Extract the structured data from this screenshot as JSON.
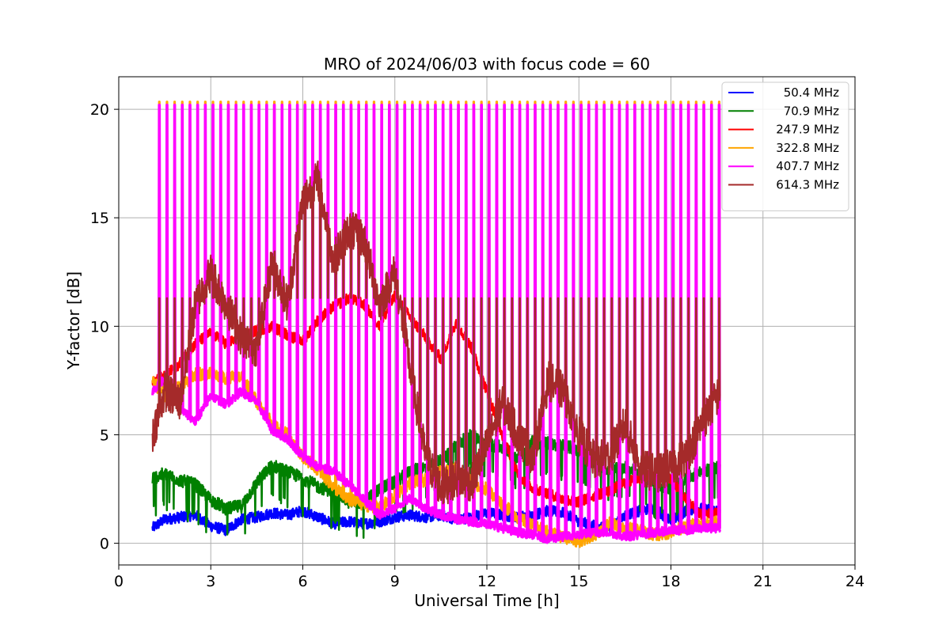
{
  "chart_data": {
    "type": "line",
    "title": "MRO of 2024/06/03 with focus code = 60",
    "xlabel": "Universal Time [h]",
    "ylabel": "Y-factor [dB]",
    "xlim": [
      0,
      24
    ],
    "ylim": [
      -1,
      21.5
    ],
    "xticks": [
      0,
      3,
      6,
      9,
      12,
      15,
      18,
      21,
      24
    ],
    "yticks": [
      0,
      5,
      10,
      15,
      20
    ],
    "grid": true,
    "legend_position": "top-right",
    "spikes": {
      "start_h": 1.3,
      "end_h": 19.6,
      "period_h": 0.25,
      "peak_db": {
        "322.8 MHz": 20.35,
        "407.7 MHz": 20.2,
        "614.3 MHz": 11.3
      }
    },
    "series": [
      {
        "name": "50.4 MHz",
        "color": "#0000ff",
        "x": [
          1.1,
          1.5,
          2.0,
          2.5,
          3.0,
          3.5,
          4.0,
          4.5,
          5.0,
          5.5,
          6.0,
          6.5,
          7.0,
          7.5,
          8.0,
          8.5,
          9.0,
          9.5,
          10.0,
          10.5,
          11.0,
          11.5,
          12.0,
          12.5,
          13.0,
          13.5,
          14.0,
          14.5,
          15.0,
          15.5,
          16.0,
          16.5,
          17.0,
          17.5,
          18.0,
          18.5,
          19.0,
          19.6
        ],
        "y": [
          0.7,
          1.1,
          1.2,
          1.3,
          0.8,
          0.6,
          1.1,
          1.2,
          1.4,
          1.3,
          1.5,
          1.2,
          0.9,
          1.0,
          0.9,
          1.0,
          1.2,
          1.3,
          1.2,
          1.3,
          1.1,
          1.2,
          1.4,
          1.3,
          1.2,
          1.3,
          1.5,
          1.4,
          1.0,
          0.8,
          0.7,
          1.3,
          1.5,
          1.6,
          1.0,
          1.5,
          1.6,
          1.5
        ]
      },
      {
        "name": "70.9 MHz",
        "color": "#008000",
        "x": [
          1.1,
          1.5,
          2.0,
          2.5,
          3.0,
          3.5,
          4.0,
          4.5,
          5.0,
          5.5,
          6.0,
          6.5,
          7.0,
          7.5,
          8.0,
          8.5,
          9.0,
          9.5,
          10.0,
          10.5,
          11.0,
          11.5,
          12.0,
          12.5,
          13.0,
          13.5,
          14.0,
          14.5,
          15.0,
          15.5,
          16.0,
          16.5,
          17.0,
          17.5,
          18.0,
          18.5,
          19.0,
          19.6
        ],
        "y": [
          3.0,
          3.2,
          2.9,
          2.7,
          2.0,
          1.6,
          1.7,
          2.8,
          3.6,
          3.3,
          3.0,
          2.6,
          2.4,
          1.9,
          1.9,
          2.5,
          2.8,
          3.3,
          3.5,
          3.8,
          4.5,
          5.0,
          4.6,
          4.4,
          4.0,
          4.7,
          4.6,
          4.5,
          4.3,
          3.7,
          3.4,
          3.5,
          3.2,
          2.8,
          2.5,
          3.0,
          3.3,
          3.5
        ]
      },
      {
        "name": "247.9 MHz",
        "color": "#ff0000",
        "x": [
          1.1,
          1.5,
          2.0,
          2.5,
          3.0,
          3.5,
          4.0,
          4.5,
          5.0,
          5.5,
          6.0,
          6.5,
          7.0,
          7.5,
          8.0,
          8.5,
          9.0,
          9.5,
          10.0,
          10.5,
          11.0,
          11.5,
          12.0,
          12.5,
          13.0,
          13.5,
          14.0,
          14.5,
          15.0,
          15.5,
          16.0,
          16.5,
          17.0,
          17.5,
          18.0,
          18.5,
          19.0,
          19.6
        ],
        "y": [
          7.5,
          7.7,
          8.3,
          9.2,
          9.7,
          9.2,
          9.5,
          9.8,
          10.0,
          9.6,
          9.3,
          10.3,
          10.9,
          11.3,
          11.0,
          10.0,
          11.4,
          10.4,
          9.5,
          8.5,
          10.2,
          9.0,
          7.0,
          5.0,
          3.2,
          2.5,
          2.3,
          2.0,
          1.9,
          2.2,
          2.4,
          2.8,
          3.0,
          3.2,
          3.0,
          2.0,
          1.3,
          1.5
        ]
      },
      {
        "name": "322.8 MHz",
        "color": "#ffa500",
        "x": [
          1.1,
          1.5,
          2.0,
          2.5,
          3.0,
          3.5,
          4.0,
          4.5,
          5.0,
          5.5,
          6.0,
          6.5,
          7.0,
          7.5,
          8.0,
          8.5,
          9.0,
          9.5,
          10.0,
          10.5,
          11.0,
          11.5,
          12.0,
          12.5,
          13.0,
          13.5,
          14.0,
          14.5,
          15.0,
          15.5,
          16.0,
          16.5,
          17.0,
          17.5,
          18.0,
          18.5,
          19.0,
          19.6
        ],
        "y": [
          7.5,
          6.8,
          7.2,
          7.8,
          7.8,
          7.6,
          7.7,
          6.5,
          5.5,
          5.0,
          4.0,
          3.4,
          2.6,
          2.0,
          1.8,
          1.6,
          2.2,
          2.8,
          2.9,
          3.3,
          3.4,
          2.8,
          2.5,
          1.8,
          1.2,
          0.8,
          0.5,
          0.3,
          0.1,
          0.4,
          0.9,
          0.7,
          0.6,
          0.4,
          0.5,
          0.8,
          0.9,
          1.0
        ]
      },
      {
        "name": "407.7 MHz",
        "color": "#ff00ff",
        "x": [
          1.1,
          1.5,
          2.0,
          2.5,
          3.0,
          3.5,
          4.0,
          4.5,
          5.0,
          5.5,
          6.0,
          6.5,
          7.0,
          7.5,
          8.0,
          8.5,
          9.0,
          9.5,
          10.0,
          10.5,
          11.0,
          11.5,
          12.0,
          12.5,
          13.0,
          13.5,
          14.0,
          14.5,
          15.0,
          15.5,
          16.0,
          16.5,
          17.0,
          17.5,
          18.0,
          18.5,
          19.0,
          19.6
        ],
        "y": [
          7.0,
          7.6,
          6.2,
          5.6,
          6.8,
          6.4,
          7.0,
          6.5,
          5.2,
          4.8,
          4.0,
          3.5,
          3.3,
          2.7,
          2.0,
          1.3,
          1.6,
          2.1,
          1.6,
          1.3,
          1.1,
          1.0,
          0.9,
          0.7,
          0.5,
          0.4,
          0.2,
          0.3,
          0.4,
          0.5,
          0.5,
          0.3,
          0.4,
          0.5,
          0.6,
          0.6,
          0.7,
          0.7
        ]
      },
      {
        "name": "614.3 MHz",
        "color": "#a52a2a",
        "x": [
          1.1,
          1.5,
          2.0,
          2.5,
          3.0,
          3.5,
          4.0,
          4.5,
          5.0,
          5.5,
          6.0,
          6.5,
          7.0,
          7.5,
          8.0,
          8.5,
          9.0,
          9.5,
          10.0,
          10.5,
          11.0,
          11.5,
          12.0,
          12.5,
          13.0,
          13.5,
          14.0,
          14.5,
          15.0,
          15.5,
          16.0,
          16.5,
          17.0,
          17.5,
          18.0,
          18.5,
          19.0,
          19.6
        ],
        "y": [
          5.0,
          7.0,
          6.5,
          11.0,
          12.5,
          11.0,
          9.5,
          9.0,
          13.0,
          11.0,
          15.8,
          16.8,
          13.0,
          14.5,
          14.0,
          11.0,
          12.5,
          8.0,
          4.0,
          2.5,
          3.0,
          2.8,
          4.5,
          6.5,
          5.0,
          4.0,
          7.5,
          7.0,
          5.0,
          3.8,
          4.0,
          5.5,
          3.5,
          3.2,
          3.5,
          4.0,
          5.5,
          7.0
        ]
      }
    ]
  }
}
